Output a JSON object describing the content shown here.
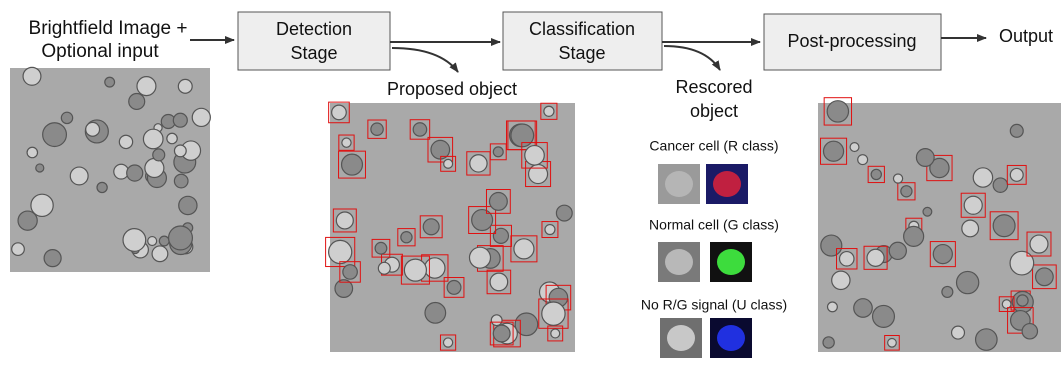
{
  "input": {
    "lines": [
      "Brightfield Image +",
      "Optional input"
    ]
  },
  "stages": [
    {
      "lines": [
        "Detection",
        "Stage"
      ]
    },
    {
      "lines": [
        "Classification",
        "Stage"
      ]
    },
    {
      "lines": [
        "Post-processing"
      ]
    }
  ],
  "output": "Output",
  "proposed_caption": "Proposed object",
  "rescored_caption": {
    "lines": [
      "Rescored",
      "object"
    ]
  },
  "classes": [
    "Cancer cell (R class)",
    "Normal cell (G class)",
    "No R/G signal (U class)"
  ]
}
